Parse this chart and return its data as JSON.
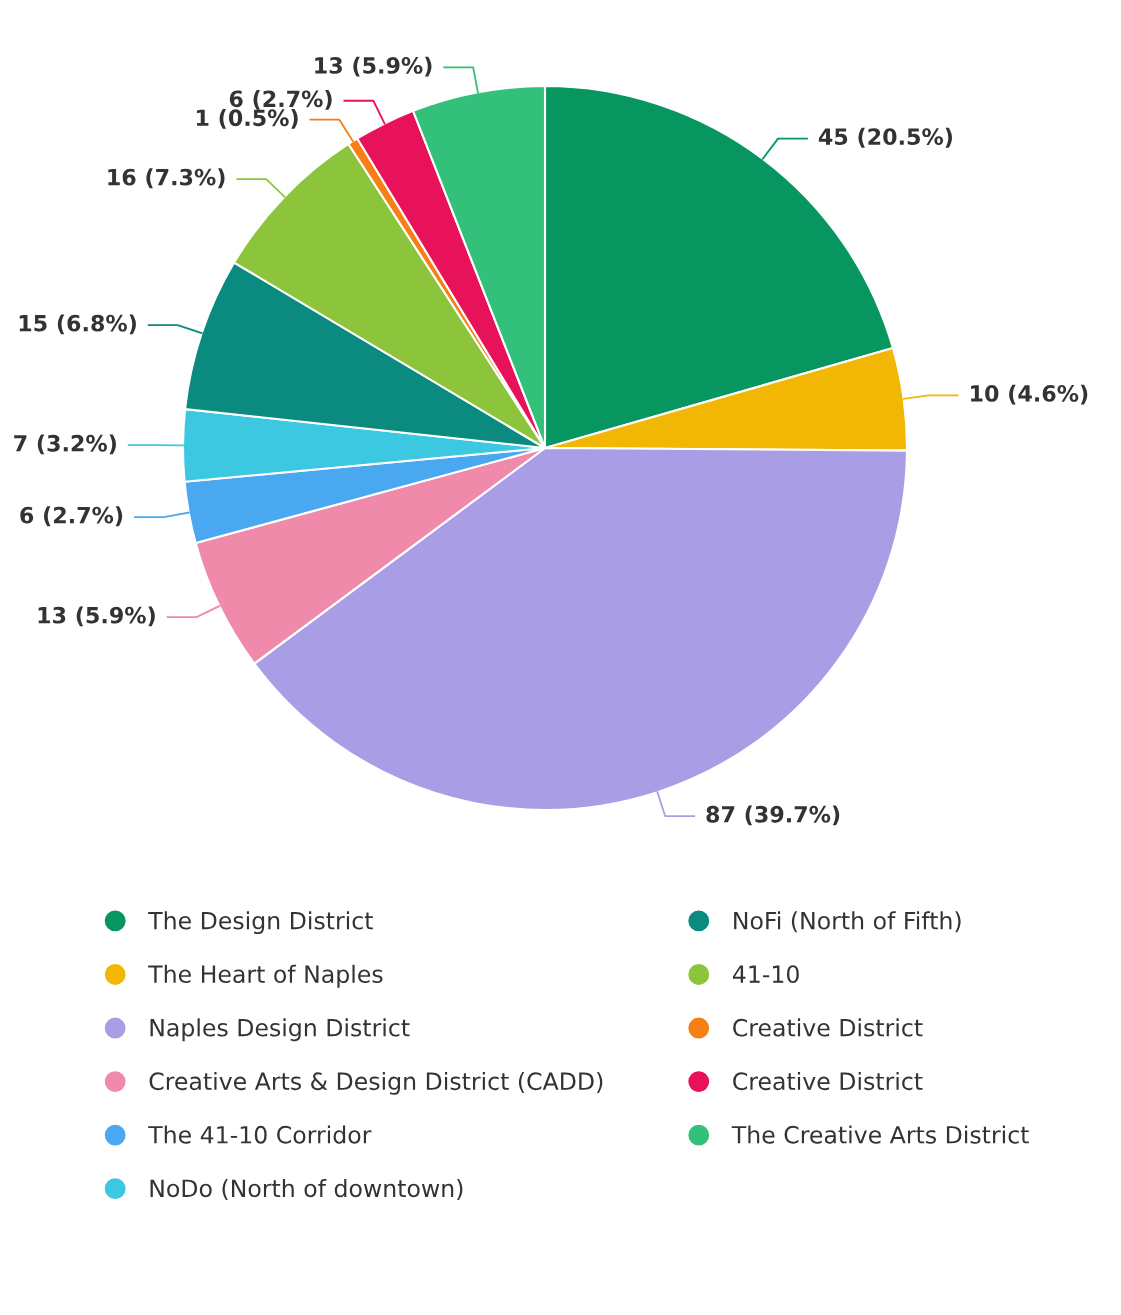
{
  "chart_data": {
    "type": "pie",
    "categories": [
      "The Design District",
      "The Heart of Naples",
      "Naples Design District",
      "Creative Arts & Design District (CADD)",
      "The 41-10 Corridor",
      "NoDo (North of downtown)",
      "NoFi (North of Fifth)",
      "41-10",
      "Creative District",
      "Creative District",
      "The Creative Arts District"
    ],
    "values": [
      45,
      10,
      87,
      13,
      6,
      7,
      15,
      16,
      1,
      6,
      13
    ],
    "value_labels": [
      "45 (20.5%)",
      "10 (4.6%)",
      "87 (39.7%)",
      "13 (5.9%)",
      "6 (2.7%)",
      "7 (3.2%)",
      "15 (6.8%)",
      "16 (7.3%)",
      "1 (0.5%)",
      "6 (2.7%)",
      "13 (5.9%)"
    ],
    "colors": [
      "#079660",
      "#f2b705",
      "#a99ee6",
      "#f08aaa",
      "#4aa8f0",
      "#3cc8e0",
      "#0b8a80",
      "#8cc43c",
      "#f77f16",
      "#e8125a",
      "#33c07a"
    ],
    "legend": "bottom"
  }
}
